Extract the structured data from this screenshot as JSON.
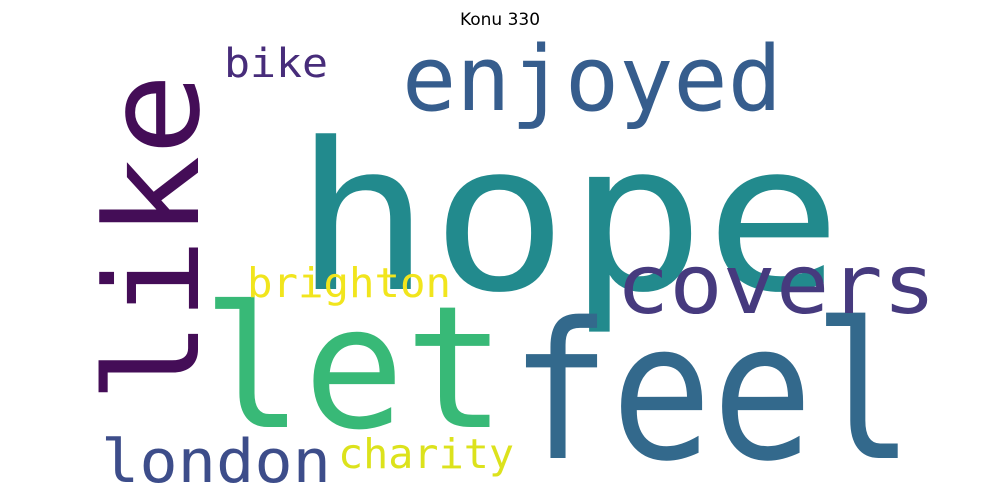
{
  "title": "Konu 330",
  "words": [
    {
      "text": "hope",
      "color": "#228a8d"
    },
    {
      "text": "feel",
      "color": "#33698c"
    },
    {
      "text": "let",
      "color": "#38b977"
    },
    {
      "text": "like",
      "color": "#440d57"
    },
    {
      "text": "enjoyed",
      "color": "#365d8d"
    },
    {
      "text": "covers",
      "color": "#463a7e"
    },
    {
      "text": "london",
      "color": "#3d4d8a"
    },
    {
      "text": "bike",
      "color": "#472c7a"
    },
    {
      "text": "brighton",
      "color": "#f1e51d"
    },
    {
      "text": "charity",
      "color": "#dce21c"
    }
  ]
}
